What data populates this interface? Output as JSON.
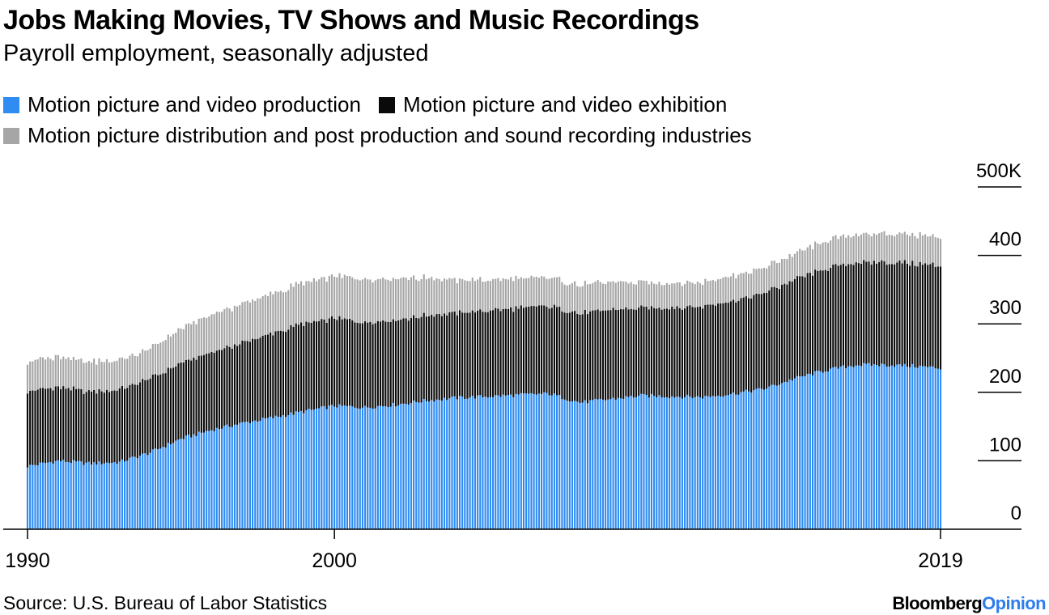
{
  "chart_data": {
    "type": "bar",
    "stacked": true,
    "title": "Jobs Making Movies, TV Shows and Music Recordings",
    "subtitle": "Payroll employment, seasonally adjusted",
    "source": "Source: U.S. Bureau of Labor Statistics",
    "brand": {
      "part1": "Bloomberg",
      "part2": "Opinion"
    },
    "x_range": [
      1990,
      2019.75
    ],
    "ylim": [
      0,
      500
    ],
    "y_ticks": [
      "500K",
      "400",
      "300",
      "200",
      "100",
      "0"
    ],
    "y_tick_values": [
      500,
      400,
      300,
      200,
      100,
      0
    ],
    "x_ticks": [
      "1990",
      "2000",
      "2019"
    ],
    "x_tick_values": [
      1990,
      2000,
      2019.75
    ],
    "colors": {
      "production": "#2f8cf2",
      "exhibition": "#0a0a0a",
      "distribution": "#a6a6a6",
      "gap": "#ffffff"
    },
    "series": [
      {
        "key": "production",
        "name": "Motion picture and video production",
        "color": "#2f8cf2",
        "anchor_years": [
          1990,
          1991,
          1992,
          1993,
          1994,
          1995,
          1996,
          1997,
          1998,
          1999,
          2000,
          2001,
          2002,
          2003,
          2004,
          2005,
          2006,
          2007,
          2008,
          2009,
          2010,
          2011,
          2012,
          2013,
          2014,
          2015,
          2016,
          2017,
          2018,
          2019,
          2019.75
        ],
        "values": [
          92,
          100,
          96,
          98,
          112,
          132,
          145,
          155,
          163,
          172,
          180,
          178,
          182,
          188,
          192,
          194,
          196,
          198,
          185,
          190,
          195,
          194,
          193,
          198,
          205,
          220,
          232,
          240,
          240,
          238,
          235
        ]
      },
      {
        "key": "exhibition",
        "name": "Motion picture and video exhibition",
        "color": "#0a0a0a",
        "anchor_years": [
          1990,
          1991,
          1992,
          1993,
          1994,
          1995,
          1996,
          1997,
          1998,
          1999,
          2000,
          2001,
          2002,
          2003,
          2004,
          2005,
          2006,
          2007,
          2008,
          2009,
          2010,
          2011,
          2012,
          2013,
          2014,
          2015,
          2016,
          2017,
          2018,
          2019,
          2019.75
        ],
        "values": [
          110,
          107,
          105,
          106,
          108,
          110,
          113,
          117,
          123,
          128,
          128,
          125,
          124,
          124,
          124,
          125,
          127,
          128,
          130,
          130,
          128,
          130,
          133,
          135,
          140,
          144,
          148,
          150,
          150,
          150,
          150
        ]
      },
      {
        "key": "distribution",
        "name": "Motion picture distribution and post production and sound recording industries",
        "color": "#a6a6a6",
        "anchor_years": [
          1990,
          1991,
          1992,
          1993,
          1994,
          1995,
          1996,
          1997,
          1998,
          1999,
          2000,
          2001,
          2002,
          2003,
          2004,
          2005,
          2006,
          2007,
          2008,
          2009,
          2010,
          2011,
          2012,
          2013,
          2014,
          2015,
          2016,
          2017,
          2018,
          2019,
          2019.75
        ],
        "values": [
          43,
          45,
          44,
          43,
          44,
          50,
          55,
          57,
          58,
          60,
          62,
          62,
          60,
          55,
          48,
          45,
          43,
          42,
          42,
          40,
          38,
          36,
          36,
          37,
          37,
          38,
          40,
          41,
          42,
          42,
          42
        ]
      }
    ],
    "months_per_bar": 1
  }
}
